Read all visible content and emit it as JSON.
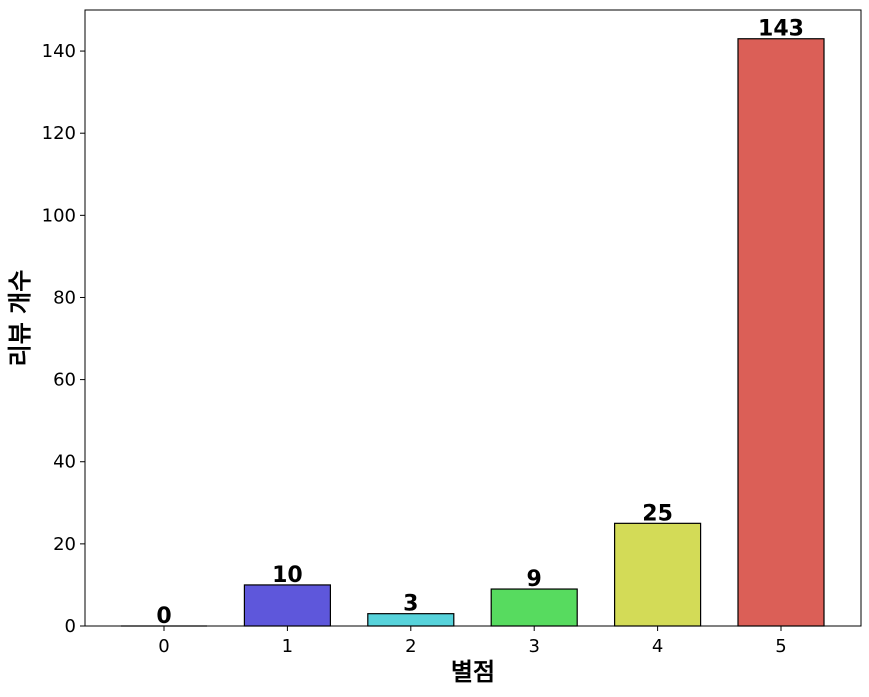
{
  "chart_data": {
    "type": "bar",
    "title": "",
    "xlabel": "별점",
    "ylabel": "리뷰 개수",
    "categories": [
      "0",
      "1",
      "2",
      "3",
      "4",
      "5"
    ],
    "values": [
      0,
      10,
      3,
      9,
      25,
      143
    ],
    "data_labels": [
      "0",
      "10",
      "3",
      "9",
      "25",
      "143"
    ],
    "colors": [
      "#cccccc",
      "#5e57db",
      "#57d3db",
      "#57db5f",
      "#d3db57",
      "#db5f57"
    ],
    "ylim": [
      0,
      150
    ],
    "yticks": [
      0,
      20,
      40,
      60,
      80,
      100,
      120,
      140
    ],
    "grid": false,
    "legend": "none"
  }
}
